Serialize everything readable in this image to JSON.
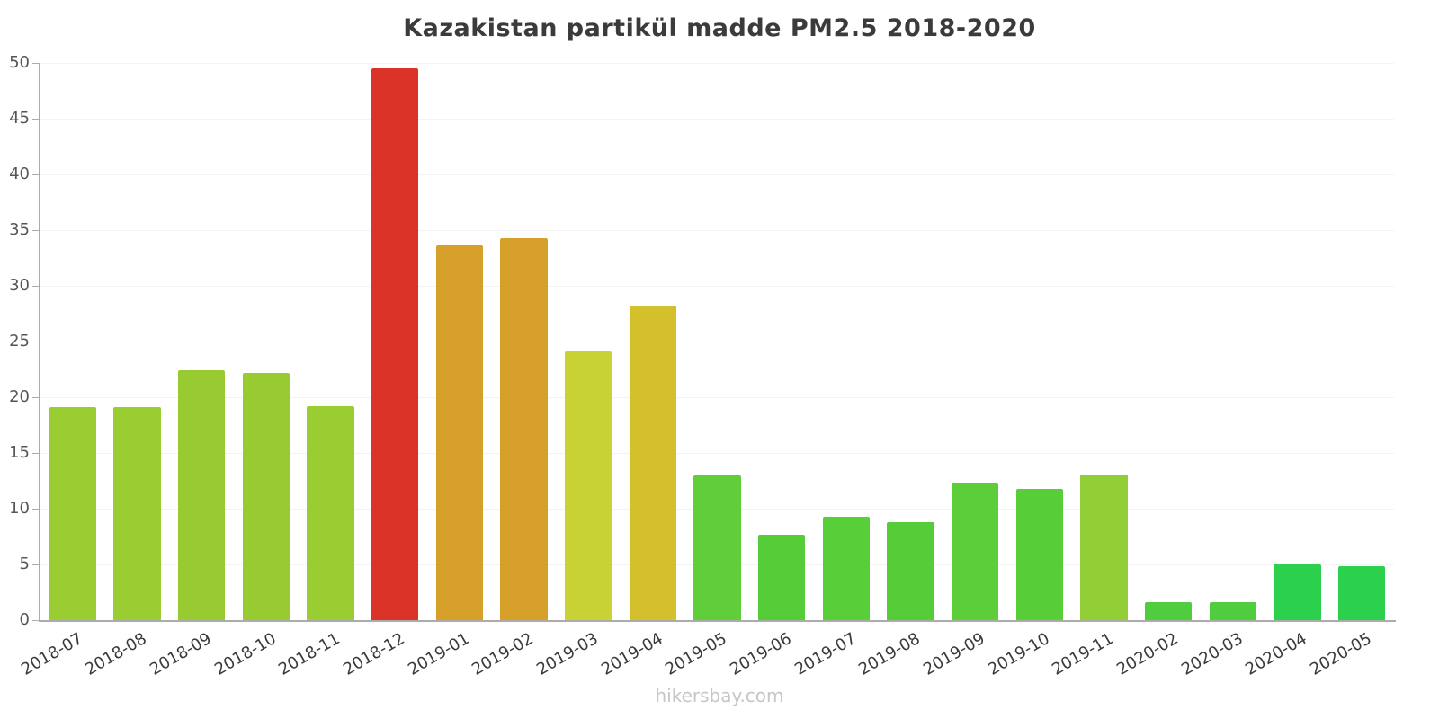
{
  "chart_data": {
    "type": "bar",
    "title": "Kazakistan partikül madde PM2.5 2018-2020",
    "categories": [
      "2018-07",
      "2018-08",
      "2018-09",
      "2018-10",
      "2018-11",
      "2018-12",
      "2019-01",
      "2019-02",
      "2019-03",
      "2019-04",
      "2019-05",
      "2019-06",
      "2019-07",
      "2019-08",
      "2019-09",
      "2019-10",
      "2019-11",
      "2020-02",
      "2020-03",
      "2020-04",
      "2020-05"
    ],
    "values": [
      19.1,
      19.1,
      22.4,
      22.2,
      19.2,
      49.5,
      33.6,
      34.3,
      24.1,
      28.2,
      13.0,
      7.7,
      9.3,
      8.8,
      12.3,
      11.8,
      13.1,
      1.6,
      1.6,
      5.0,
      4.8
    ],
    "colors": [
      "#9ACD32",
      "#9ACD32",
      "#98CB31",
      "#98CB31",
      "#9ACD32",
      "#DB3327",
      "#D6A02B",
      "#D6A02B",
      "#C9D234",
      "#D3C02C",
      "#5FCE3A",
      "#55CD38",
      "#58CE39",
      "#55CD38",
      "#5CCE3A",
      "#57CD38",
      "#92CE35",
      "#4FCD3F",
      "#4FCD3F",
      "#2BD14C",
      "#2BD14C"
    ],
    "xlabel": "",
    "ylabel": "",
    "ylim": [
      0,
      50
    ],
    "ytick_step": 5,
    "yticks": [
      0,
      5,
      10,
      15,
      20,
      25,
      30,
      35,
      40,
      45,
      50
    ],
    "grid": "faint-horizontal",
    "legend": "none",
    "bar_width_ratio": 0.73,
    "x_label_rotation_deg": -30
  },
  "footer": {
    "source_label": "hikersbay.com"
  }
}
